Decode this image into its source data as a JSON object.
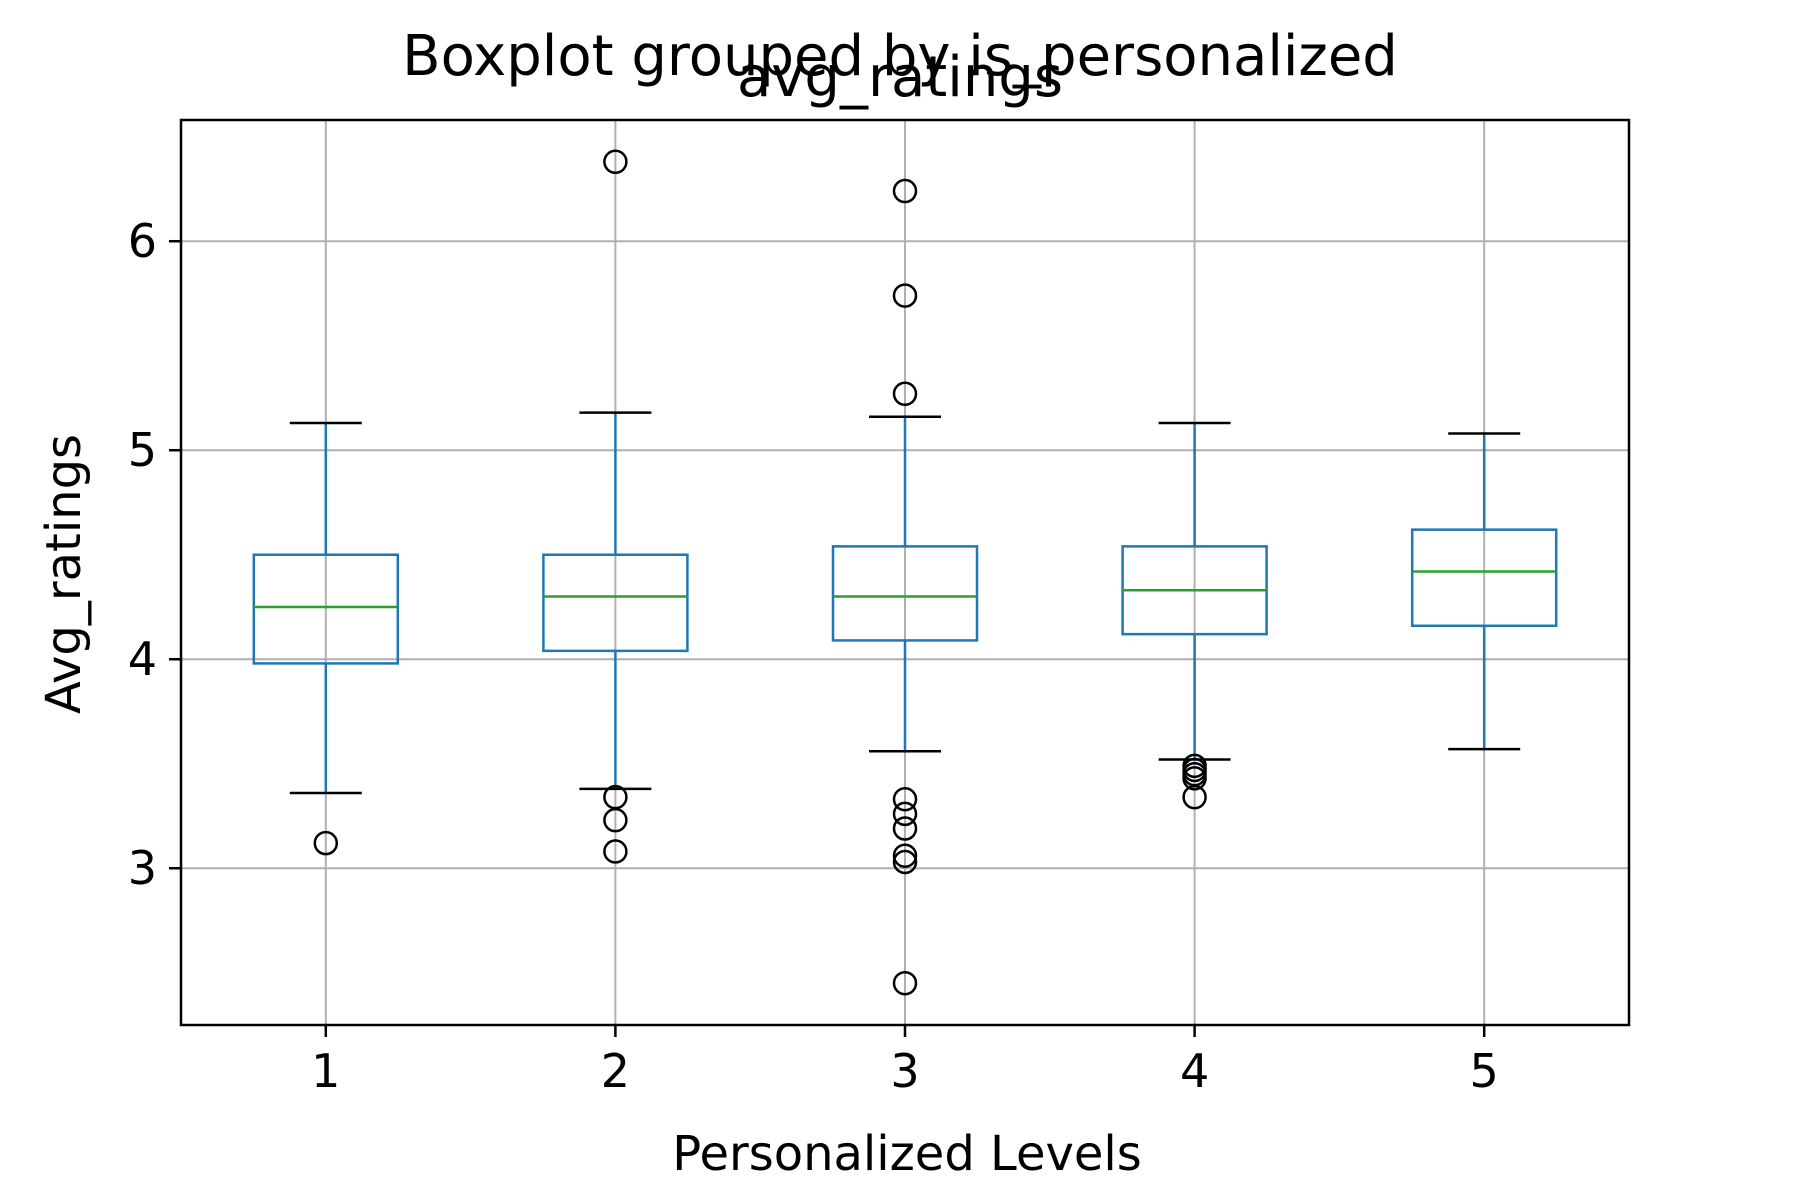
{
  "chart_data": {
    "type": "boxplot",
    "suptitle": "Boxplot grouped by is_personalized",
    "title": "avg_ratings",
    "xlabel": "Personalized Levels",
    "ylabel": "Avg_ratings",
    "categories": [
      "1",
      "2",
      "3",
      "4",
      "5"
    ],
    "ylim": [
      2.25,
      6.58
    ],
    "yticks": [
      3,
      4,
      5,
      6
    ],
    "ytick_labels": [
      "3",
      "4",
      "5",
      "6"
    ],
    "grid": true,
    "colors": {
      "box": "#1f77b4",
      "median": "#2ca02c",
      "whisker": "#1f77b4",
      "cap": "#000000",
      "flier": "#000000",
      "grid": "#b0b0b0"
    },
    "boxes": [
      {
        "category": "1",
        "whislo": 3.36,
        "q1": 3.98,
        "med": 4.25,
        "q3": 4.5,
        "whishi": 5.13,
        "fliers": [
          3.12
        ]
      },
      {
        "category": "2",
        "whislo": 3.38,
        "q1": 4.04,
        "med": 4.3,
        "q3": 4.5,
        "whishi": 5.18,
        "fliers": [
          6.38,
          3.34,
          3.23,
          3.08
        ]
      },
      {
        "category": "3",
        "whislo": 3.56,
        "q1": 4.09,
        "med": 4.3,
        "q3": 4.54,
        "whishi": 5.16,
        "fliers": [
          6.24,
          5.74,
          5.27,
          3.33,
          3.26,
          3.19,
          3.06,
          3.03,
          2.45
        ]
      },
      {
        "category": "4",
        "whislo": 3.52,
        "q1": 4.12,
        "med": 4.33,
        "q3": 4.54,
        "whishi": 5.13,
        "fliers": [
          3.49,
          3.47,
          3.45,
          3.43,
          3.34
        ]
      },
      {
        "category": "5",
        "whislo": 3.57,
        "q1": 4.16,
        "med": 4.42,
        "q3": 4.62,
        "whishi": 5.08,
        "fliers": []
      }
    ]
  }
}
